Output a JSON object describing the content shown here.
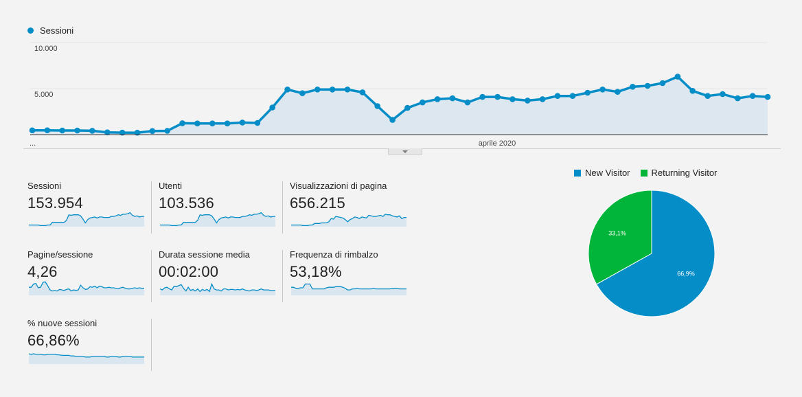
{
  "main_chart": {
    "legend_label": "Sessioni",
    "series_color": "#058dc7",
    "y_tick_top": "10.000",
    "y_tick_mid": "5.000",
    "x_label_start": "...",
    "x_label_mid": "aprile 2020"
  },
  "chart_data": {
    "type": "area",
    "series": [
      {
        "name": "Sessioni",
        "values": [
          460,
          470,
          450,
          450,
          420,
          250,
          220,
          210,
          390,
          410,
          1240,
          1220,
          1220,
          1220,
          1310,
          1270,
          2950,
          4900,
          4500,
          4900,
          4900,
          4900,
          4600,
          3100,
          1600,
          2900,
          3500,
          3850,
          3950,
          3500,
          4100,
          4100,
          3850,
          3700,
          3850,
          4200,
          4200,
          4550,
          4900,
          4650,
          5200,
          5300,
          5600,
          6300,
          4750,
          4200,
          4400,
          3950,
          4200,
          4100
        ]
      }
    ],
    "ylim": [
      0,
      10000
    ],
    "yticks": [
      "10.000",
      "5.000"
    ],
    "xlabels": [
      "...",
      "aprile 2020"
    ]
  },
  "metrics": [
    {
      "label": "Sessioni",
      "value": "153.954",
      "spark": [
        3,
        3,
        3,
        3,
        3,
        2,
        2,
        2,
        3,
        3,
        8,
        8,
        8,
        8,
        8,
        8,
        12,
        22,
        21,
        22,
        22,
        22,
        20,
        14,
        7,
        13,
        16,
        17,
        18,
        16,
        18,
        18,
        17,
        17,
        17,
        19,
        19,
        20,
        22,
        21,
        23,
        23,
        24,
        26,
        21,
        19,
        20,
        18,
        19,
        19
      ]
    },
    {
      "label": "Utenti",
      "value": "103.536",
      "spark": [
        3,
        3,
        3,
        3,
        3,
        2,
        2,
        2,
        3,
        3,
        8,
        8,
        8,
        8,
        8,
        8,
        12,
        22,
        21,
        22,
        22,
        22,
        20,
        14,
        7,
        13,
        16,
        17,
        18,
        16,
        18,
        18,
        17,
        17,
        17,
        19,
        19,
        20,
        22,
        21,
        23,
        23,
        24,
        26,
        21,
        19,
        20,
        18,
        19,
        19
      ]
    },
    {
      "label": "Visualizzazioni di pagina",
      "value": "656.215",
      "spark": [
        3,
        3,
        3,
        3,
        3,
        2,
        2,
        2,
        3,
        3,
        6,
        6,
        6,
        7,
        7,
        7,
        9,
        15,
        14,
        19,
        18,
        17,
        16,
        13,
        9,
        13,
        15,
        18,
        17,
        15,
        18,
        17,
        16,
        21,
        20,
        19,
        19,
        20,
        21,
        19,
        23,
        22,
        22,
        20,
        19,
        18,
        20,
        15,
        17,
        17
      ]
    },
    {
      "label": "Pagine/sessione",
      "value": "4,26",
      "spark": [
        15,
        15,
        21,
        22,
        14,
        15,
        24,
        25,
        18,
        10,
        8,
        9,
        8,
        11,
        10,
        9,
        11,
        12,
        8,
        10,
        9,
        10,
        19,
        14,
        11,
        12,
        16,
        15,
        17,
        14,
        17,
        16,
        14,
        14,
        15,
        14,
        14,
        13,
        12,
        14,
        15,
        13,
        12,
        12,
        13,
        14,
        13,
        14,
        13,
        13
      ]
    },
    {
      "label": "Durata sessione media",
      "value": "00:02:00",
      "spark": [
        12,
        10,
        14,
        15,
        12,
        10,
        17,
        16,
        18,
        20,
        13,
        8,
        15,
        9,
        11,
        8,
        12,
        7,
        11,
        9,
        11,
        7,
        21,
        12,
        10,
        10,
        8,
        12,
        12,
        10,
        11,
        11,
        10,
        11,
        10,
        12,
        10,
        9,
        8,
        10,
        10,
        9,
        10,
        12,
        10,
        10,
        10,
        9,
        9,
        9
      ]
    },
    {
      "label": "Frequenza di rimbalzo",
      "value": "53,18%",
      "spark": [
        15,
        15,
        13,
        13,
        14,
        14,
        21,
        21,
        21,
        12,
        12,
        12,
        12,
        12,
        12,
        14,
        15,
        15,
        15,
        16,
        16,
        16,
        15,
        13,
        10,
        10,
        12,
        12,
        13,
        12,
        12,
        12,
        12,
        12,
        12,
        13,
        12,
        12,
        12,
        12,
        12,
        12,
        12,
        13,
        13,
        13,
        12,
        12,
        12,
        12
      ]
    },
    {
      "label": "% nuove sessioni",
      "value": "66,86%",
      "spark": [
        19,
        18,
        19,
        18,
        18,
        18,
        17,
        17,
        18,
        18,
        18,
        18,
        17,
        17,
        16,
        16,
        16,
        16,
        15,
        15,
        14,
        14,
        14,
        14,
        13,
        13,
        13,
        14,
        14,
        14,
        14,
        14,
        14,
        13,
        13,
        14,
        14,
        14,
        13,
        13,
        14,
        14,
        14,
        14,
        13,
        13,
        13,
        13,
        13,
        13
      ]
    }
  ],
  "pie": {
    "legend": [
      {
        "label": "New Visitor",
        "color": "#058dc7"
      },
      {
        "label": "Returning Visitor",
        "color": "#00b539"
      }
    ],
    "slices": [
      {
        "label": "66,9%",
        "value": 66.9,
        "color": "#058dc7"
      },
      {
        "label": "33,1%",
        "value": 33.1,
        "color": "#00b539"
      }
    ]
  }
}
